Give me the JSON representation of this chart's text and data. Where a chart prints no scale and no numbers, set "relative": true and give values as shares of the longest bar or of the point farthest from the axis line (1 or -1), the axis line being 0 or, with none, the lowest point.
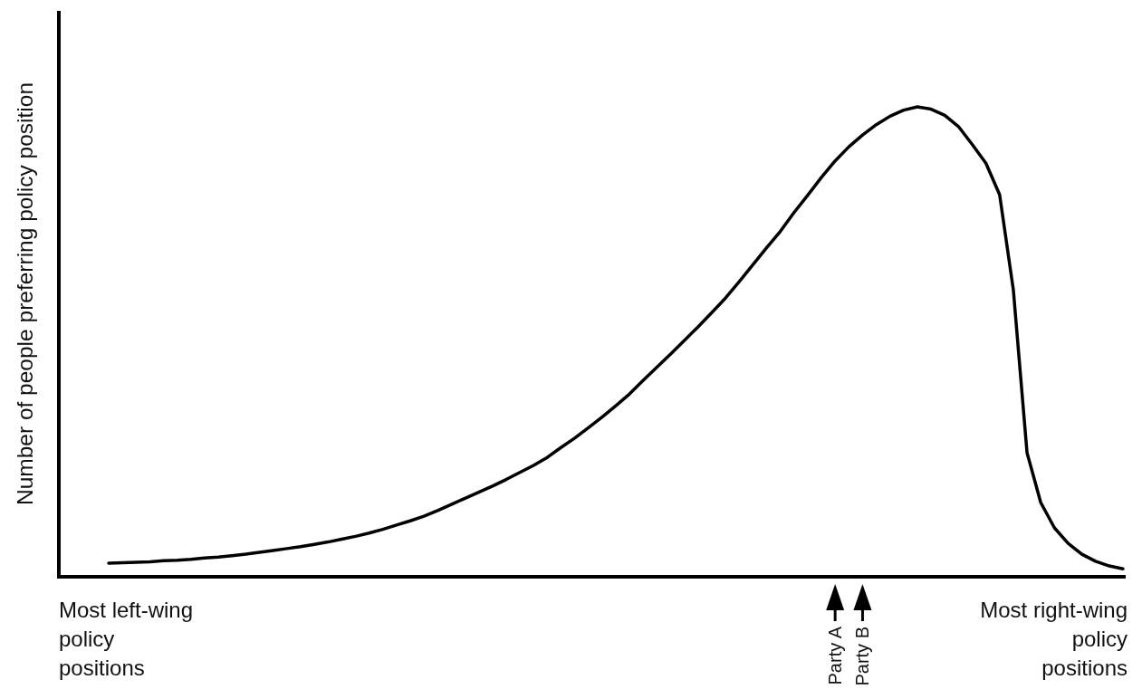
{
  "chart_data": {
    "type": "line",
    "relative": true,
    "ylabel": "Number of people preferring policy position",
    "categories": [
      null,
      null,
      null,
      null,
      null,
      null,
      null,
      null,
      null,
      null,
      null,
      null,
      null,
      null,
      null,
      null,
      null,
      null,
      null,
      null,
      null,
      null,
      null,
      null,
      null,
      null,
      null,
      null,
      null,
      null,
      null,
      null,
      null,
      null,
      null,
      null,
      null,
      null,
      null,
      null,
      null,
      null,
      null,
      null,
      null,
      null,
      null,
      null,
      null,
      null,
      null,
      null,
      null,
      "Party A",
      null,
      "Party B",
      null,
      null,
      null,
      null,
      null,
      null,
      null,
      null,
      null,
      null,
      null,
      null,
      null,
      null,
      null,
      null,
      null,
      null,
      null
    ],
    "series": [
      {
        "color": "#000000",
        "values": [
          0.029,
          0.03,
          0.031,
          0.032,
          0.034,
          0.035,
          0.037,
          0.04,
          0.042,
          0.045,
          0.048,
          0.052,
          0.056,
          0.06,
          0.064,
          0.069,
          0.074,
          0.08,
          0.086,
          0.093,
          0.101,
          0.11,
          0.119,
          0.129,
          0.141,
          0.154,
          0.167,
          0.18,
          0.193,
          0.207,
          0.222,
          0.237,
          0.254,
          0.275,
          0.295,
          0.317,
          0.34,
          0.364,
          0.389,
          0.418,
          0.446,
          0.474,
          0.503,
          0.532,
          0.562,
          0.593,
          0.628,
          0.664,
          0.7,
          0.735,
          0.775,
          0.812,
          0.85,
          0.885,
          0.915,
          0.94,
          0.962,
          0.98,
          0.993,
          1.0,
          0.995,
          0.982,
          0.958,
          0.92,
          0.88,
          0.813,
          0.611,
          0.264,
          0.158,
          0.104,
          0.071,
          0.048,
          0.033,
          0.023,
          0.017
        ]
      }
    ],
    "annotations": [
      "Most left-wing policy positions",
      "Most right-wing policy positions"
    ],
    "grid": false,
    "marker": "none",
    "line_style": "solid"
  }
}
